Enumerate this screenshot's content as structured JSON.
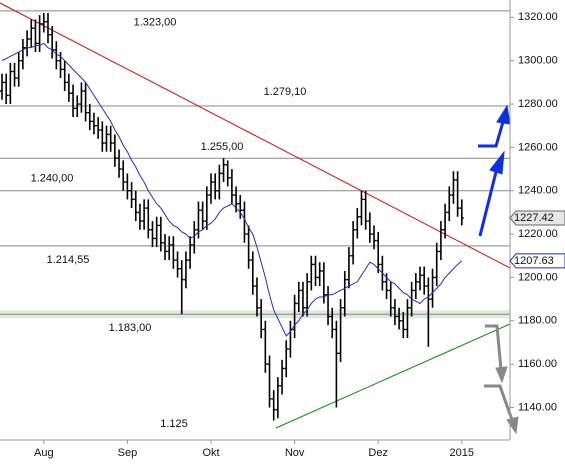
{
  "chart_data": {
    "type": "ohlc",
    "categories": [
      null,
      null,
      null,
      null,
      null,
      null,
      null,
      null,
      null,
      null,
      "Aug",
      null,
      null,
      null,
      null,
      null,
      null,
      null,
      null,
      null,
      null,
      null,
      null,
      null,
      null,
      null,
      null,
      null,
      null,
      null,
      "Sep",
      null,
      null,
      null,
      null,
      null,
      null,
      null,
      null,
      null,
      null,
      null,
      null,
      null,
      null,
      null,
      null,
      null,
      null,
      null,
      "Okt",
      null,
      null,
      null,
      null,
      null,
      null,
      null,
      null,
      null,
      null,
      null,
      null,
      null,
      null,
      null,
      null,
      null,
      null,
      null,
      "Nov",
      null,
      null,
      null,
      null,
      null,
      null,
      null,
      null,
      null,
      null,
      null,
      null,
      null,
      null,
      null,
      null,
      null,
      null,
      null,
      "Dez",
      null,
      null,
      null,
      null,
      null,
      null,
      null,
      null,
      null,
      null,
      null,
      null,
      null,
      null,
      null,
      null,
      null,
      null,
      null,
      "2015"
    ],
    "ohlc": [
      [
        1286,
        1294,
        1282,
        1290
      ],
      [
        1290,
        1294,
        1280,
        1284
      ],
      [
        1284,
        1299,
        1280,
        1295
      ],
      [
        1295,
        1299,
        1288,
        1292
      ],
      [
        1292,
        1304,
        1288,
        1300
      ],
      [
        1300,
        1310,
        1296,
        1306
      ],
      [
        1306,
        1314,
        1302,
        1310
      ],
      [
        1310,
        1319,
        1306,
        1315
      ],
      [
        1315,
        1319,
        1304,
        1308
      ],
      [
        1308,
        1321,
        1304,
        1317
      ],
      [
        1317,
        1322,
        1313,
        1318
      ],
      [
        1318,
        1322,
        1308,
        1312
      ],
      [
        1312,
        1316,
        1301,
        1305
      ],
      [
        1305,
        1309,
        1296,
        1300
      ],
      [
        1300,
        1304,
        1292,
        1296
      ],
      [
        1296,
        1300,
        1286,
        1290
      ],
      [
        1290,
        1294,
        1281,
        1285
      ],
      [
        1285,
        1289,
        1274,
        1278
      ],
      [
        1278,
        1284,
        1274,
        1280
      ],
      [
        1280,
        1290,
        1276,
        1286
      ],
      [
        1286,
        1290,
        1272,
        1276
      ],
      [
        1276,
        1280,
        1268,
        1272
      ],
      [
        1272,
        1276,
        1266,
        1270
      ],
      [
        1270,
        1274,
        1264,
        1268
      ],
      [
        1268,
        1272,
        1258,
        1262
      ],
      [
        1262,
        1270,
        1258,
        1266
      ],
      [
        1266,
        1270,
        1258,
        1262
      ],
      [
        1262,
        1266,
        1251,
        1255
      ],
      [
        1255,
        1259,
        1246,
        1250
      ],
      [
        1250,
        1254,
        1240,
        1244
      ],
      [
        1244,
        1248,
        1236,
        1240
      ],
      [
        1240,
        1244,
        1232,
        1236
      ],
      [
        1236,
        1240,
        1226,
        1230
      ],
      [
        1230,
        1234,
        1222,
        1226
      ],
      [
        1226,
        1236,
        1222,
        1232
      ],
      [
        1232,
        1236,
        1218,
        1222
      ],
      [
        1222,
        1226,
        1214,
        1218
      ],
      [
        1218,
        1228,
        1214,
        1224
      ],
      [
        1224,
        1228,
        1212,
        1216
      ],
      [
        1216,
        1220,
        1208,
        1212
      ],
      [
        1212,
        1219,
        1208,
        1215
      ],
      [
        1215,
        1219,
        1204,
        1208
      ],
      [
        1208,
        1212,
        1200,
        1204
      ],
      [
        1204,
        1208,
        1183,
        1199
      ],
      [
        1199,
        1212,
        1195,
        1208
      ],
      [
        1208,
        1219,
        1204,
        1215
      ],
      [
        1215,
        1226,
        1211,
        1222
      ],
      [
        1222,
        1235,
        1218,
        1231
      ],
      [
        1231,
        1235,
        1222,
        1226
      ],
      [
        1226,
        1242,
        1222,
        1238
      ],
      [
        1238,
        1248,
        1234,
        1244
      ],
      [
        1244,
        1248,
        1236,
        1240
      ],
      [
        1240,
        1252,
        1236,
        1248
      ],
      [
        1248,
        1255,
        1244,
        1252
      ],
      [
        1252,
        1254,
        1242,
        1246
      ],
      [
        1246,
        1250,
        1234,
        1238
      ],
      [
        1238,
        1242,
        1230,
        1234
      ],
      [
        1234,
        1238,
        1227,
        1231
      ],
      [
        1231,
        1235,
        1216,
        1220
      ],
      [
        1220,
        1224,
        1204,
        1208
      ],
      [
        1208,
        1212,
        1192,
        1196
      ],
      [
        1196,
        1200,
        1182,
        1186
      ],
      [
        1186,
        1190,
        1172,
        1176
      ],
      [
        1176,
        1180,
        1156,
        1160
      ],
      [
        1160,
        1164,
        1140,
        1144
      ],
      [
        1144,
        1148,
        1134,
        1139
      ],
      [
        1139,
        1154,
        1135,
        1150
      ],
      [
        1150,
        1162,
        1146,
        1158
      ],
      [
        1158,
        1171,
        1154,
        1167
      ],
      [
        1167,
        1180,
        1163,
        1176
      ],
      [
        1176,
        1192,
        1172,
        1188
      ],
      [
        1188,
        1198,
        1184,
        1194
      ],
      [
        1194,
        1198,
        1182,
        1186
      ],
      [
        1186,
        1202,
        1182,
        1198
      ],
      [
        1198,
        1210,
        1194,
        1206
      ],
      [
        1206,
        1210,
        1196,
        1200
      ],
      [
        1200,
        1207,
        1196,
        1203
      ],
      [
        1203,
        1207,
        1188,
        1192
      ],
      [
        1192,
        1196,
        1178,
        1182
      ],
      [
        1182,
        1186,
        1172,
        1176
      ],
      [
        1176,
        1180,
        1140,
        1165
      ],
      [
        1165,
        1190,
        1161,
        1186
      ],
      [
        1186,
        1203,
        1182,
        1199
      ],
      [
        1199,
        1214,
        1195,
        1210
      ],
      [
        1210,
        1226,
        1206,
        1222
      ],
      [
        1222,
        1232,
        1218,
        1228
      ],
      [
        1228,
        1240,
        1224,
        1236
      ],
      [
        1236,
        1240,
        1222,
        1226
      ],
      [
        1226,
        1230,
        1216,
        1220
      ],
      [
        1220,
        1224,
        1213,
        1217
      ],
      [
        1217,
        1221,
        1202,
        1206
      ],
      [
        1206,
        1210,
        1194,
        1198
      ],
      [
        1198,
        1202,
        1190,
        1194
      ],
      [
        1194,
        1198,
        1182,
        1186
      ],
      [
        1186,
        1190,
        1178,
        1182
      ],
      [
        1182,
        1186,
        1176,
        1180
      ],
      [
        1180,
        1184,
        1172,
        1176
      ],
      [
        1176,
        1190,
        1172,
        1186
      ],
      [
        1186,
        1198,
        1182,
        1194
      ],
      [
        1194,
        1202,
        1190,
        1198
      ],
      [
        1198,
        1205,
        1194,
        1201
      ],
      [
        1201,
        1205,
        1192,
        1196
      ],
      [
        1196,
        1200,
        1168,
        1190
      ],
      [
        1190,
        1204,
        1186,
        1200
      ],
      [
        1200,
        1216,
        1196,
        1212
      ],
      [
        1212,
        1226,
        1208,
        1222
      ],
      [
        1222,
        1234,
        1218,
        1230
      ],
      [
        1230,
        1242,
        1226,
        1238
      ],
      [
        1238,
        1249,
        1234,
        1245
      ],
      [
        1245,
        1249,
        1228,
        1232
      ],
      [
        1232,
        1236,
        1224,
        1227.42
      ]
    ],
    "ma": [
      1300,
      1301,
      1302,
      1303,
      1304,
      1305,
      1306,
      1306,
      1307,
      1307,
      1308,
      1306,
      1305,
      1303,
      1302,
      1300,
      1298,
      1296,
      1294,
      1292,
      1290,
      1287,
      1284,
      1281,
      1278,
      1275,
      1272,
      1268,
      1265,
      1261,
      1258,
      1254,
      1251,
      1247,
      1244,
      1240,
      1237,
      1234,
      1232,
      1229,
      1226,
      1224,
      1223,
      1221,
      1220,
      1218,
      1219,
      1221,
      1222,
      1224,
      1225,
      1227,
      1230,
      1232,
      1233,
      1234,
      1232,
      1230,
      1227,
      1223,
      1220,
      1214,
      1207,
      1200,
      1192,
      1185,
      1181,
      1177,
      1173,
      1175,
      1178,
      1180,
      1183,
      1185,
      1188,
      1190,
      1191,
      1191,
      1192,
      1192,
      1193,
      1194,
      1195,
      1196,
      1197,
      1198,
      1201,
      1204,
      1207,
      1206,
      1204,
      1202,
      1200,
      1198,
      1197,
      1195,
      1193,
      1192,
      1190,
      1189,
      1188,
      1190,
      1191,
      1193,
      1195,
      1197,
      1200,
      1202,
      1204,
      1206,
      1207.63
    ],
    "ma_color": "#1f2fbf",
    "bar_color": "#000000",
    "levels": [
      1323,
      1279.1,
      1255,
      1240,
      1214.55,
      1183,
      1125
    ],
    "level_labels": [
      "1.323,00",
      "1.279,10",
      "1.255,00",
      "1.240,00",
      "1.214,55",
      "1.183,00",
      "1.125"
    ],
    "ylim": [
      1125,
      1328
    ],
    "yticks": [
      {
        "value": 1140,
        "label": "1140.00"
      },
      {
        "value": 1160,
        "label": "1160.00"
      },
      {
        "value": 1180,
        "label": "1180.00"
      },
      {
        "value": 1200,
        "label": "1200.00"
      },
      {
        "value": 1220,
        "label": "1220.00"
      },
      {
        "value": 1240,
        "label": "1240.00"
      },
      {
        "value": 1260,
        "label": "1260.00"
      },
      {
        "value": 1280,
        "label": "1280.00"
      },
      {
        "value": 1300,
        "label": "1300.00"
      },
      {
        "value": 1320,
        "label": "1320.00"
      }
    ]
  }
}
